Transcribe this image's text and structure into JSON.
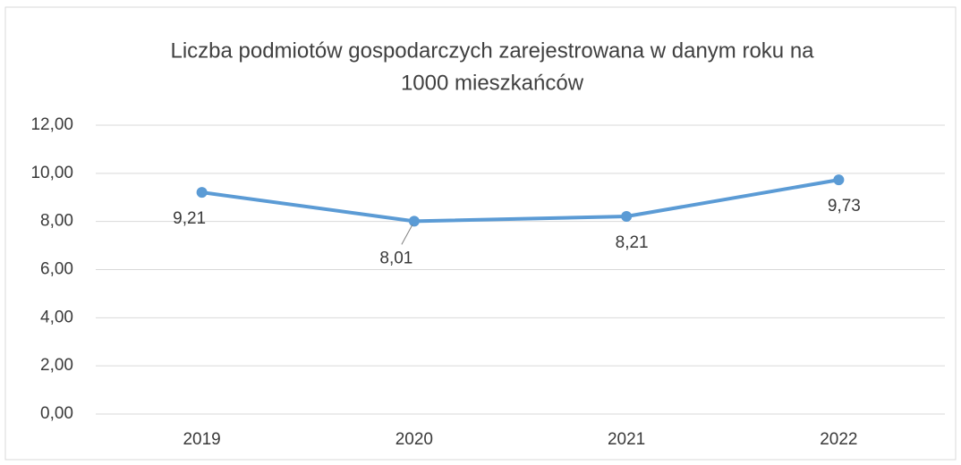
{
  "chart_data": {
    "type": "line",
    "title": [
      "Liczba podmiotów gospodarczych zarejestrowana w danym roku na",
      "1000 mieszkańców"
    ],
    "categories": [
      "2019",
      "2020",
      "2021",
      "2022"
    ],
    "series": [
      {
        "name": "Liczba podmiotów",
        "color": "#5b9bd5",
        "values": [
          9.21,
          8.01,
          8.21,
          9.73
        ],
        "value_labels": [
          "9,21",
          "8,01",
          "8,21",
          "9,73"
        ]
      }
    ],
    "ylim": [
      0,
      12
    ],
    "yticks": [
      {
        "value": 0,
        "label": "0,00"
      },
      {
        "value": 2,
        "label": "2,00"
      },
      {
        "value": 4,
        "label": "4,00"
      },
      {
        "value": 6,
        "label": "6,00"
      },
      {
        "value": 8,
        "label": "8,00"
      },
      {
        "value": 10,
        "label": "10,00"
      },
      {
        "value": 12,
        "label": "12,00"
      }
    ],
    "grid": true
  }
}
